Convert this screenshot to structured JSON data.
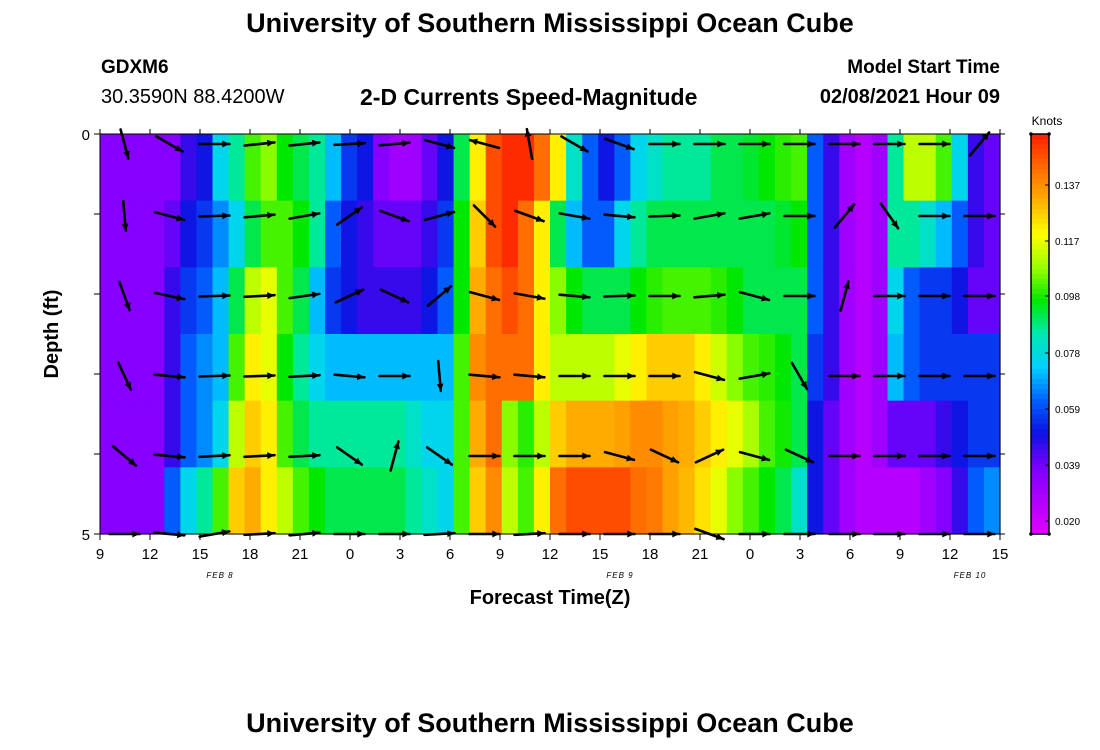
{
  "header": {
    "title": "University of Southern Mississippi Ocean Cube",
    "station": "GDXM6",
    "coordinates": "30.3590N 88.4200W",
    "subtitle": "2-D Currents Speed-Magnitude",
    "model_start_label": "Model Start Time",
    "model_start_value": "02/08/2021 Hour 09"
  },
  "footer": {
    "title": "University of Southern Mississippi Ocean Cube"
  },
  "chart_data": {
    "type": "heatmap",
    "title": "2-D Currents Speed-Magnitude",
    "xlabel": "Forecast Time(Z)",
    "ylabel": "Depth (ft)",
    "x_tick_labels": [
      "9",
      "12",
      "15",
      "18",
      "21",
      "0",
      "3",
      "6",
      "9",
      "12",
      "15",
      "18",
      "21",
      "0",
      "3",
      "6",
      "9",
      "12",
      "15"
    ],
    "date_labels": [
      {
        "label": "FEB 8",
        "after_tick": 2
      },
      {
        "label": "FEB 9",
        "after_tick": 10
      },
      {
        "label": "FEB 10",
        "after_tick": 17
      }
    ],
    "y_tick_labels": [
      "0",
      "5"
    ],
    "ylim": [
      5,
      0
    ],
    "x_hours": 54,
    "colorbar": {
      "unit": "Knots",
      "ticks": [
        "0.137",
        "0.117",
        "0.098",
        "0.078",
        "0.059",
        "0.039",
        "0.020"
      ],
      "colors": [
        "#ff1e00",
        "#ff6a00",
        "#ffb000",
        "#ffff00",
        "#9cff00",
        "#00e800",
        "#00e8b0",
        "#00d0ff",
        "#0060ff",
        "#1010e0",
        "#7a00ff",
        "#b000ff",
        "#e000ff"
      ],
      "range": [
        0.015,
        0.152
      ]
    },
    "speed_grid_note": "rows = depth layers top to bottom, columns = hourly forecast steps from Feb 8 09Z",
    "speed_rows": [
      [
        0.035,
        0.035,
        0.035,
        0.035,
        0.035,
        0.045,
        0.05,
        0.075,
        0.085,
        0.1,
        0.105,
        0.095,
        0.09,
        0.085,
        0.07,
        0.055,
        0.05,
        0.035,
        0.03,
        0.03,
        0.04,
        0.05,
        0.09,
        0.12,
        0.145,
        0.15,
        0.15,
        0.14,
        0.12,
        0.08,
        0.06,
        0.05,
        0.06,
        0.075,
        0.08,
        0.085,
        0.085,
        0.085,
        0.09,
        0.09,
        0.092,
        0.095,
        0.098,
        0.1,
        0.06,
        0.045,
        0.03,
        0.025,
        0.03,
        0.085,
        0.11,
        0.11,
        0.1,
        0.075,
        0.045,
        0.04
      ],
      [
        0.035,
        0.035,
        0.035,
        0.035,
        0.04,
        0.05,
        0.055,
        0.065,
        0.075,
        0.09,
        0.1,
        0.1,
        0.095,
        0.085,
        0.06,
        0.05,
        0.045,
        0.04,
        0.04,
        0.04,
        0.045,
        0.055,
        0.095,
        0.125,
        0.145,
        0.15,
        0.14,
        0.12,
        0.09,
        0.07,
        0.06,
        0.06,
        0.075,
        0.085,
        0.09,
        0.09,
        0.09,
        0.09,
        0.09,
        0.09,
        0.09,
        0.09,
        0.092,
        0.095,
        0.06,
        0.045,
        0.03,
        0.025,
        0.03,
        0.085,
        0.085,
        0.08,
        0.07,
        0.06,
        0.045,
        0.04
      ],
      [
        0.035,
        0.035,
        0.035,
        0.035,
        0.045,
        0.055,
        0.06,
        0.07,
        0.09,
        0.11,
        0.115,
        0.1,
        0.09,
        0.07,
        0.055,
        0.05,
        0.045,
        0.045,
        0.045,
        0.045,
        0.05,
        0.06,
        0.095,
        0.13,
        0.14,
        0.145,
        0.14,
        0.12,
        0.105,
        0.095,
        0.09,
        0.09,
        0.09,
        0.095,
        0.098,
        0.1,
        0.1,
        0.1,
        0.098,
        0.095,
        0.09,
        0.09,
        0.09,
        0.09,
        0.06,
        0.045,
        0.03,
        0.025,
        0.03,
        0.075,
        0.06,
        0.055,
        0.055,
        0.05,
        0.04,
        0.04
      ],
      [
        0.035,
        0.035,
        0.035,
        0.035,
        0.045,
        0.06,
        0.065,
        0.07,
        0.1,
        0.12,
        0.115,
        0.095,
        0.085,
        0.075,
        0.07,
        0.07,
        0.07,
        0.07,
        0.07,
        0.07,
        0.07,
        0.07,
        0.1,
        0.135,
        0.14,
        0.14,
        0.14,
        0.12,
        0.11,
        0.11,
        0.11,
        0.11,
        0.115,
        0.12,
        0.125,
        0.125,
        0.125,
        0.12,
        0.112,
        0.105,
        0.1,
        0.098,
        0.095,
        0.09,
        0.055,
        0.045,
        0.03,
        0.025,
        0.03,
        0.07,
        0.06,
        0.055,
        0.055,
        0.055,
        0.055,
        0.055
      ],
      [
        0.035,
        0.035,
        0.035,
        0.035,
        0.045,
        0.06,
        0.065,
        0.075,
        0.11,
        0.125,
        0.12,
        0.1,
        0.09,
        0.085,
        0.085,
        0.085,
        0.085,
        0.085,
        0.085,
        0.08,
        0.075,
        0.075,
        0.1,
        0.13,
        0.14,
        0.105,
        0.098,
        0.11,
        0.125,
        0.13,
        0.13,
        0.13,
        0.132,
        0.135,
        0.135,
        0.132,
        0.13,
        0.125,
        0.12,
        0.115,
        0.108,
        0.1,
        0.096,
        0.09,
        0.05,
        0.04,
        0.03,
        0.025,
        0.03,
        0.04,
        0.04,
        0.04,
        0.045,
        0.05,
        0.055,
        0.055
      ],
      [
        0.035,
        0.035,
        0.035,
        0.035,
        0.06,
        0.075,
        0.085,
        0.1,
        0.125,
        0.13,
        0.12,
        0.11,
        0.1,
        0.095,
        0.09,
        0.09,
        0.09,
        0.09,
        0.09,
        0.085,
        0.08,
        0.075,
        0.1,
        0.125,
        0.135,
        0.11,
        0.1,
        0.12,
        0.14,
        0.145,
        0.145,
        0.145,
        0.145,
        0.14,
        0.138,
        0.132,
        0.128,
        0.122,
        0.115,
        0.105,
        0.1,
        0.095,
        0.09,
        0.08,
        0.05,
        0.04,
        0.03,
        0.025,
        0.025,
        0.025,
        0.025,
        0.03,
        0.035,
        0.045,
        0.06,
        0.065
      ]
    ],
    "vectors_note": "current vectors drawn as arrows (angle in degrees, 0 = pointing right, positive = clockwise on screen)",
    "vectors": [
      [
        [
          75,
          0
        ],
        [
          30,
          0
        ],
        [
          0,
          0
        ],
        [
          -6,
          0
        ],
        [
          -6,
          0
        ],
        [
          -3,
          0
        ],
        [
          -5,
          0
        ],
        [
          15,
          0
        ],
        [
          -165,
          0
        ],
        [
          -100,
          0
        ],
        [
          30,
          0
        ],
        [
          20,
          0
        ],
        [
          0,
          0
        ],
        [
          0,
          0
        ],
        [
          0,
          0
        ],
        [
          0,
          0
        ],
        [
          0,
          0
        ],
        [
          0,
          0
        ],
        [
          0,
          0
        ],
        [
          -50,
          0
        ]
      ],
      [
        [
          85,
          0
        ],
        [
          15,
          0
        ],
        [
          -2,
          0
        ],
        [
          -5,
          0
        ],
        [
          -10,
          0
        ],
        [
          -35,
          0
        ],
        [
          20,
          0
        ],
        [
          -15,
          0
        ],
        [
          45,
          0
        ],
        [
          20,
          0
        ],
        [
          10,
          0
        ],
        [
          5,
          0
        ],
        [
          -2,
          0
        ],
        [
          -10,
          0
        ],
        [
          -10,
          0
        ],
        [
          0,
          0
        ],
        [
          -50,
          0
        ],
        [
          55,
          0
        ],
        [
          0,
          0
        ],
        [
          0,
          0
        ]
      ],
      [
        [
          70,
          0
        ],
        [
          12,
          0
        ],
        [
          -2,
          0
        ],
        [
          -3,
          0
        ],
        [
          -8,
          0
        ],
        [
          -25,
          0
        ],
        [
          25,
          0
        ],
        [
          -40,
          0
        ],
        [
          15,
          0
        ],
        [
          10,
          0
        ],
        [
          5,
          0
        ],
        [
          -2,
          0
        ],
        [
          0,
          0
        ],
        [
          -5,
          0
        ],
        [
          15,
          0
        ],
        [
          0,
          0
        ],
        [
          -75,
          0
        ],
        [
          0,
          0
        ],
        [
          0,
          0
        ],
        [
          0,
          0
        ]
      ],
      [
        [
          65,
          0
        ],
        [
          5,
          0
        ],
        [
          -2,
          0
        ],
        [
          -2,
          0
        ],
        [
          -3,
          0
        ],
        [
          5,
          0
        ],
        [
          0,
          0
        ],
        [
          85,
          0
        ],
        [
          5,
          0
        ],
        [
          5,
          0
        ],
        [
          0,
          0
        ],
        [
          0,
          0
        ],
        [
          0,
          0
        ],
        [
          15,
          0
        ],
        [
          -10,
          0
        ],
        [
          60,
          0
        ],
        [
          0,
          0
        ],
        [
          0,
          0
        ],
        [
          0,
          0
        ],
        [
          0,
          0
        ]
      ],
      [
        [
          40,
          0
        ],
        [
          5,
          0
        ],
        [
          -3,
          0
        ],
        [
          -3,
          0
        ],
        [
          -3,
          0
        ],
        [
          35,
          0
        ],
        [
          -75,
          0
        ],
        [
          35,
          0
        ],
        [
          0,
          0
        ],
        [
          0,
          0
        ],
        [
          0,
          0
        ],
        [
          15,
          0
        ],
        [
          25,
          0
        ],
        [
          -25,
          0
        ],
        [
          15,
          0
        ],
        [
          25,
          0
        ],
        [
          0,
          0
        ],
        [
          0,
          0
        ],
        [
          0,
          0
        ],
        [
          0,
          0
        ]
      ],
      [
        [
          0,
          0
        ],
        [
          5,
          0
        ],
        [
          -10,
          0
        ],
        [
          -3,
          0
        ],
        [
          -5,
          0
        ],
        [
          0,
          0
        ],
        [
          0,
          0
        ],
        [
          -3,
          0
        ],
        [
          0,
          0
        ],
        [
          -3,
          0
        ],
        [
          0,
          0
        ],
        [
          0,
          0
        ],
        [
          0,
          0
        ],
        [
          20,
          0
        ],
        [
          0,
          0
        ],
        [
          0,
          0
        ],
        [
          0,
          0
        ],
        [
          0,
          0
        ],
        [
          0,
          0
        ],
        [
          0,
          0
        ]
      ]
    ]
  }
}
